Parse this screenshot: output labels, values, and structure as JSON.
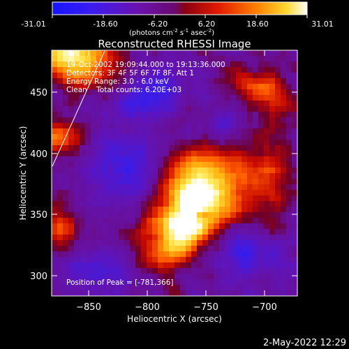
{
  "colorbar": {
    "tick_labels": [
      "-31.01",
      "-18.60",
      "-6.20",
      "6.20",
      "18.60",
      "31.01"
    ],
    "units_base": "(photons cm",
    "units_exp1": "-2",
    "units_mid1": " s",
    "units_exp2": "-1",
    "units_mid2": " asec",
    "units_exp3": "-2",
    "units_end": ")"
  },
  "plot": {
    "title": "Reconstructed RHESSI Image",
    "xlabel": "Heliocentric X (arcsec)",
    "ylabel": "Heliocentric Y (arcsec)",
    "x_range": [
      -875,
      -685
    ],
    "y_range": [
      285,
      485
    ],
    "x_ticks": [
      -850,
      -800,
      -750,
      -700
    ],
    "x_tick_labels": [
      "−850",
      "−800",
      "−750",
      "−700"
    ],
    "y_ticks": [
      300,
      350,
      400,
      450
    ],
    "y_tick_labels": [
      "300",
      "350",
      "400",
      "450"
    ]
  },
  "annotations": {
    "time": "19-Oct-2002 19:09:44.000 to 19:13:36.000",
    "detectors": "Detectors: 3F 4F 5F 6F 7F 8F, Att 1",
    "energy": "Energy Range: 3.0 - 6.0 keV",
    "method": "Clean    Total counts: 6.20E+03",
    "peak": "Position of Peak = [-781,366]"
  },
  "footer": {
    "date": "2-May-2022 12:29"
  },
  "image_data": {
    "description_type": "solar hard x-ray map",
    "peak_position": [
      -781,
      366
    ],
    "colormap": [
      "#0000ff",
      "#5a00b8",
      "#7a00a0",
      "#c00000",
      "#ff5000",
      "#ffd000",
      "#ffffff"
    ]
  }
}
